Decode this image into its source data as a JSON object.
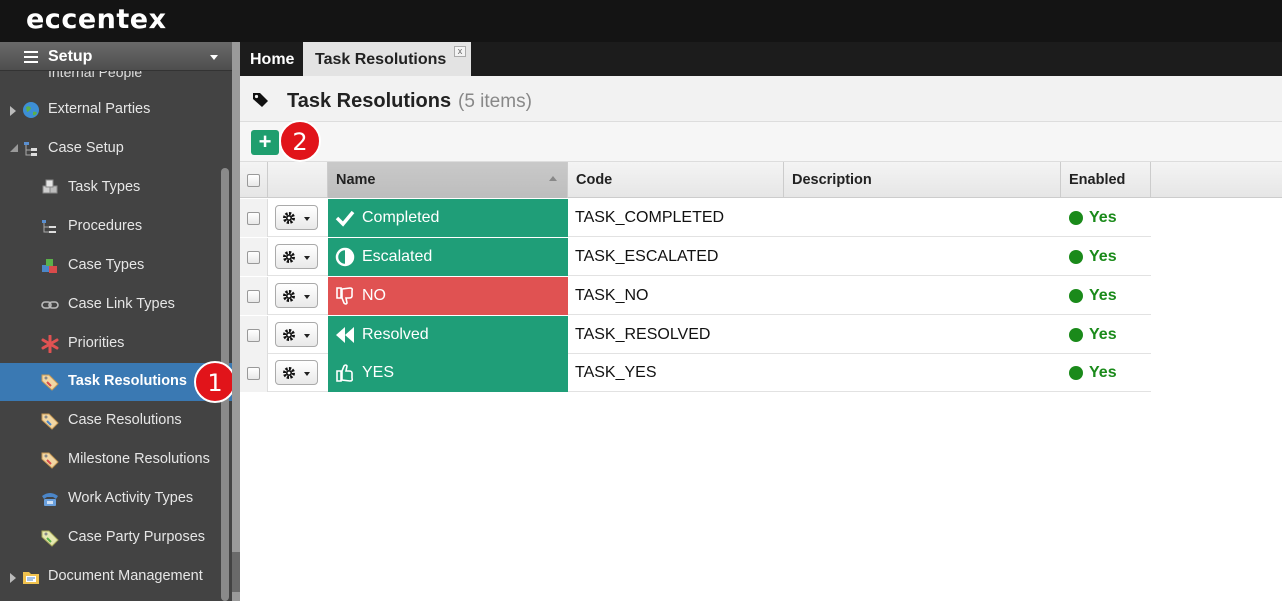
{
  "app": {
    "logo": "eccentex"
  },
  "sidebar": {
    "title": "Setup",
    "cut_item": "Internal People",
    "items": [
      {
        "label": "External Parties",
        "icon": "globe-icon"
      },
      {
        "label": "Case Setup",
        "icon": "hierarchy-icon"
      },
      {
        "label": "Task Types",
        "icon": "cubes-icon"
      },
      {
        "label": "Procedures",
        "icon": "procedure-icon"
      },
      {
        "label": "Case Types",
        "icon": "blocks-icon"
      },
      {
        "label": "Case Link Types",
        "icon": "link-icon"
      },
      {
        "label": "Priorities",
        "icon": "asterisk-icon"
      },
      {
        "label": "Task Resolutions",
        "icon": "tag-icon",
        "active": true
      },
      {
        "label": "Case Resolutions",
        "icon": "tag-icon"
      },
      {
        "label": "Milestone Resolutions",
        "icon": "tag-icon"
      },
      {
        "label": "Work Activity Types",
        "icon": "phone-icon"
      },
      {
        "label": "Case Party Purposes",
        "icon": "tag-icon"
      },
      {
        "label": "Document Management",
        "icon": "folder-icon"
      }
    ]
  },
  "tabs": [
    {
      "label": "Home"
    },
    {
      "label": "Task Resolutions",
      "active": true,
      "close": "x"
    }
  ],
  "page": {
    "title": "Task Resolutions",
    "count": "(5 items)"
  },
  "toolbar": {
    "add_label": "+"
  },
  "annotations": {
    "badge1": "1",
    "badge2": "2"
  },
  "grid": {
    "columns": [
      "Name",
      "Code",
      "Description",
      "Enabled"
    ],
    "rows": [
      {
        "name": "Completed",
        "icon": "check-icon",
        "color": "#1f9e78",
        "code": "TASK_COMPLETED",
        "description": "",
        "enabled": "Yes"
      },
      {
        "name": "Escalated",
        "icon": "half-circle-icon",
        "color": "#1f9e78",
        "code": "TASK_ESCALATED",
        "description": "",
        "enabled": "Yes"
      },
      {
        "name": "NO",
        "icon": "thumbs-down-icon",
        "color": "#e05252",
        "code": "TASK_NO",
        "description": "",
        "enabled": "Yes"
      },
      {
        "name": "Resolved",
        "icon": "fast-backward-icon",
        "color": "#1f9e78",
        "code": "TASK_RESOLVED",
        "description": "",
        "enabled": "Yes"
      },
      {
        "name": "YES",
        "icon": "thumbs-up-icon",
        "color": "#1f9e78",
        "code": "TASK_YES",
        "description": "",
        "enabled": "Yes"
      }
    ]
  },
  "colors": {
    "accent": "#3a79b3",
    "success": "#1a8a1a",
    "green_button": "#1f9e6e",
    "badge": "#e1141a"
  }
}
